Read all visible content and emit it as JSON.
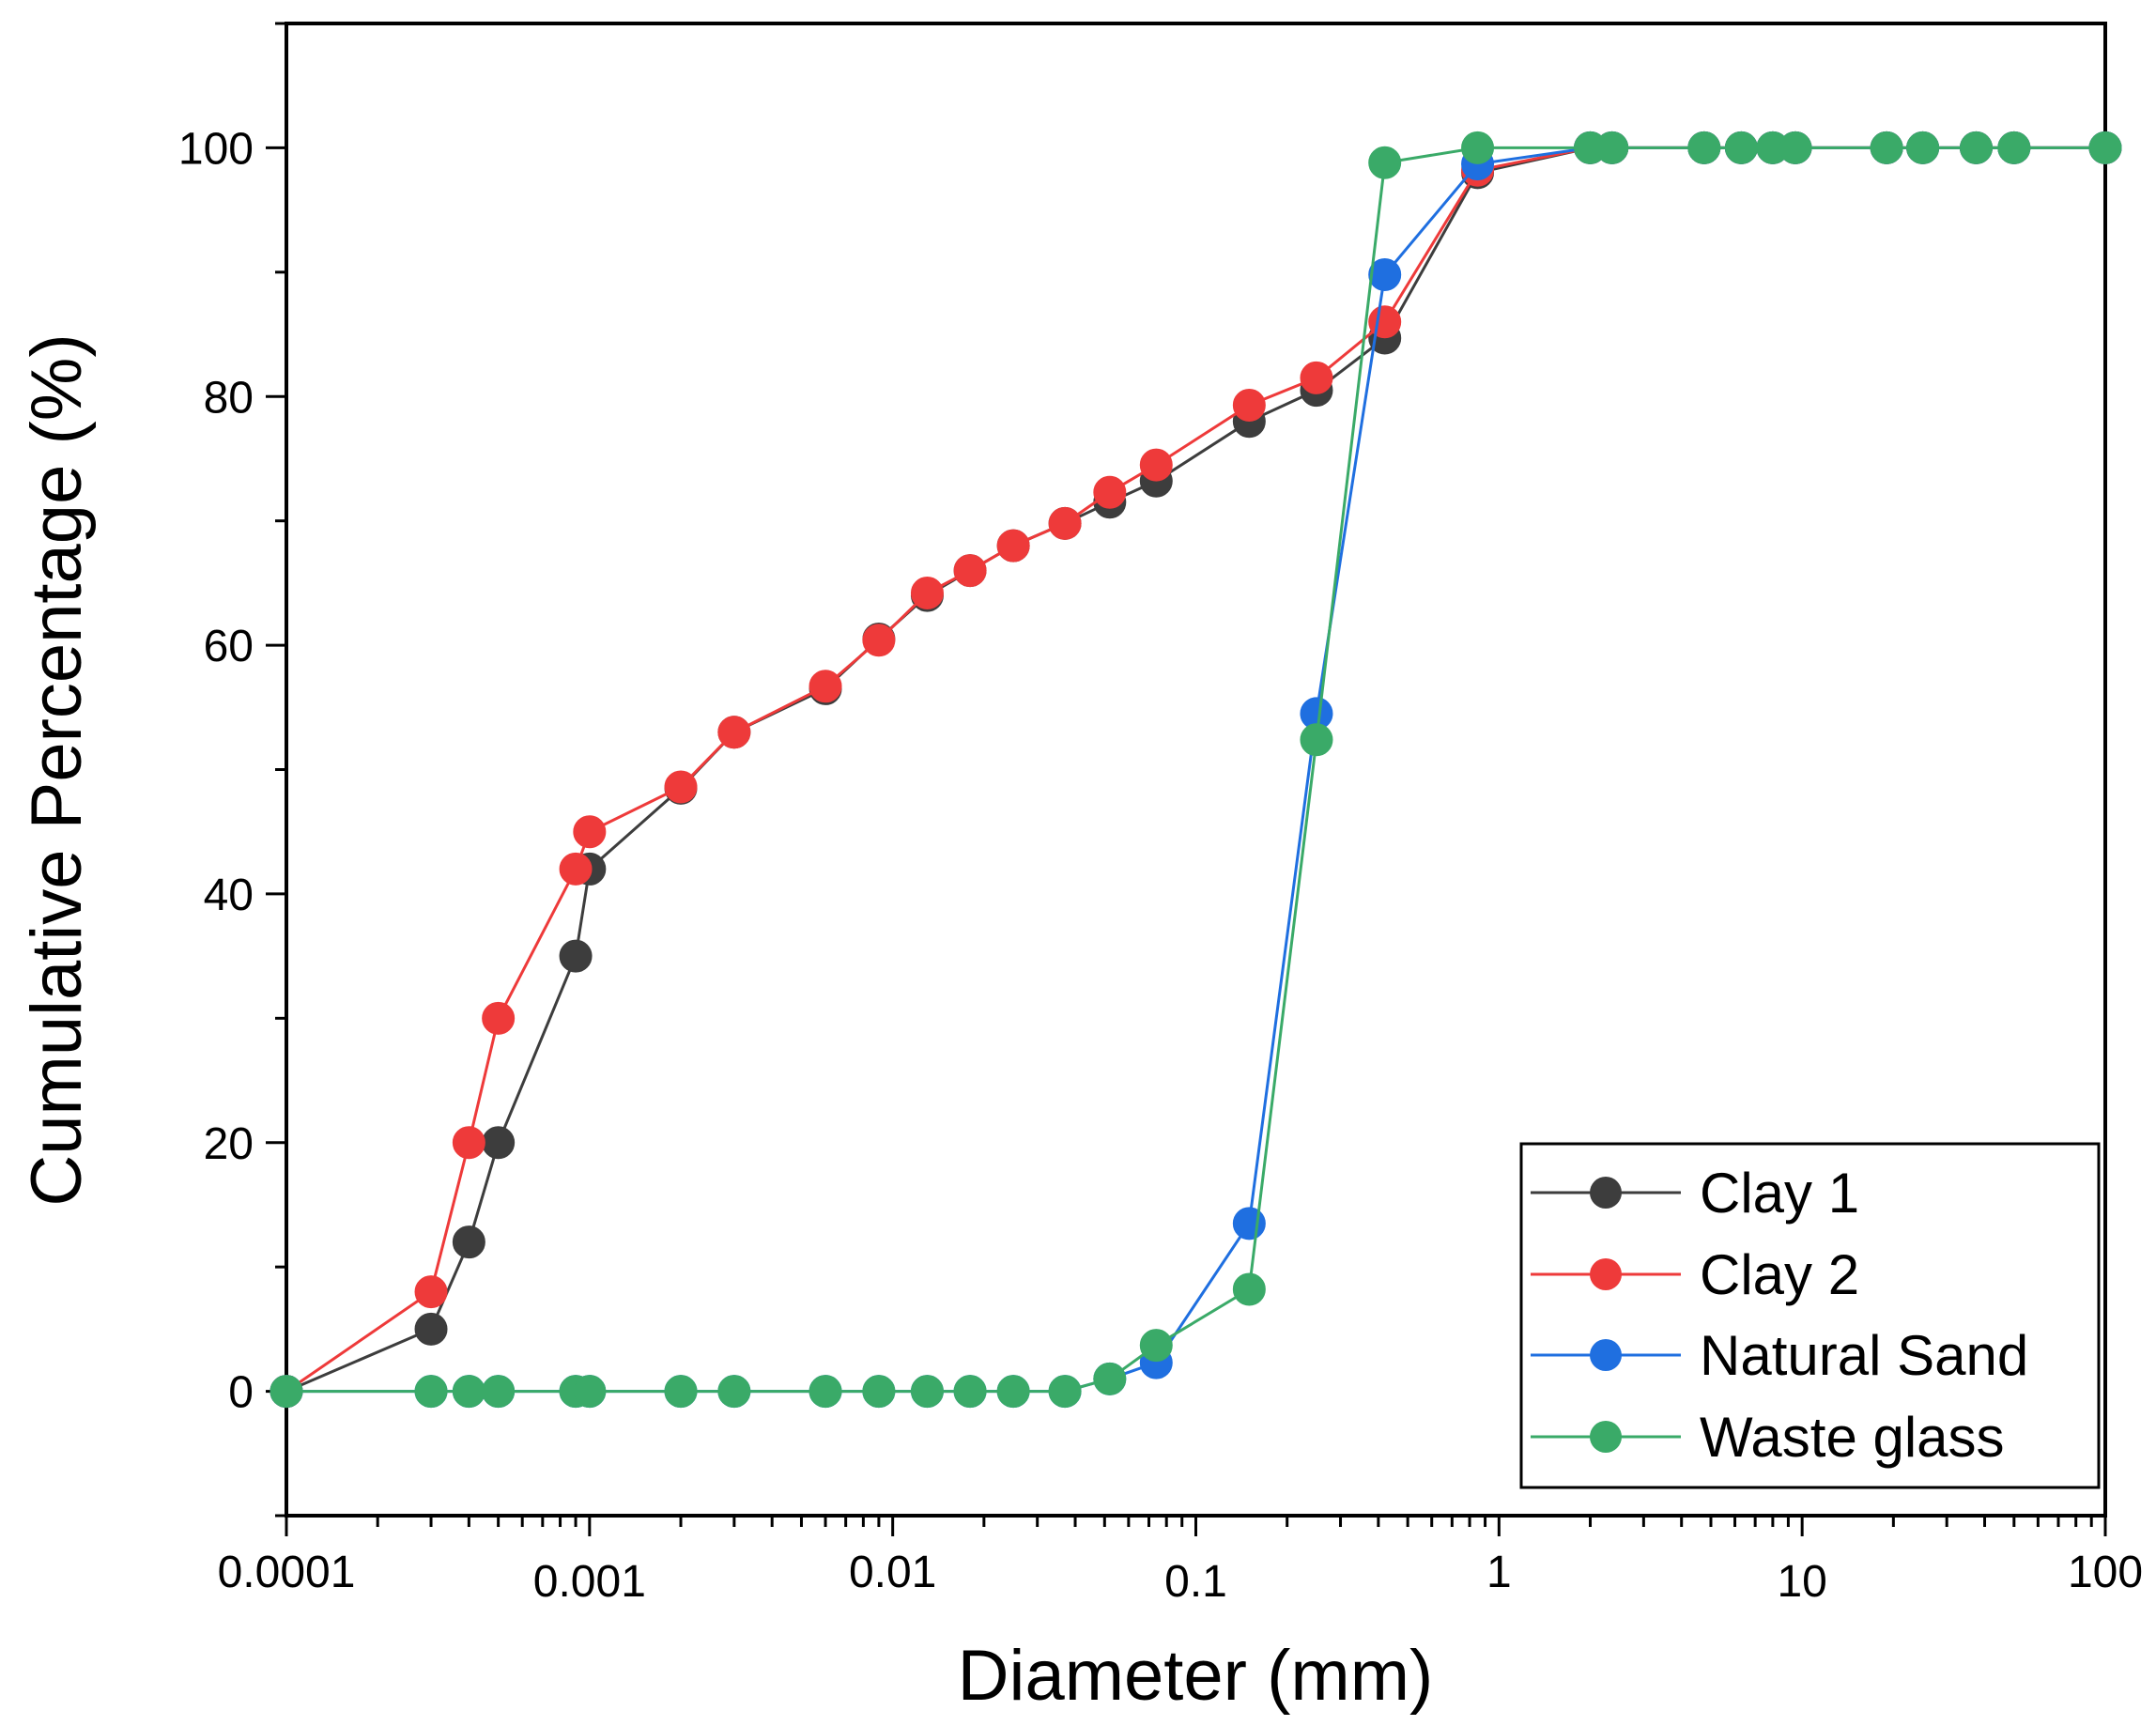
{
  "chart_data": {
    "type": "line",
    "xscale": "log",
    "xlabel": "Diameter (mm)",
    "ylabel": "Cumulative Percentage (%)",
    "xlim": [
      0.0001,
      100
    ],
    "ylim": [
      -10,
      110
    ],
    "xticks": [
      0.0001,
      0.001,
      0.01,
      0.1,
      1,
      10,
      100
    ],
    "xtick_labels": [
      "0.0001",
      "0.001",
      "0.01",
      "0.1",
      "1",
      "10",
      "100"
    ],
    "yticks": [
      0,
      20,
      40,
      60,
      80,
      100
    ],
    "ytick_labels": [
      "0",
      "20",
      "40",
      "60",
      "80",
      "100"
    ],
    "legend_position": "bottom-right",
    "series": [
      {
        "name": "Clay 1",
        "color": "#3d3d3d",
        "x": [
          0.0001,
          0.0003,
          0.0004,
          0.0005,
          0.0009,
          0.001,
          0.002,
          0.003,
          0.006,
          0.009,
          0.013,
          0.018,
          0.025,
          0.037,
          0.052,
          0.074,
          0.15,
          0.25,
          0.42,
          0.85,
          2,
          2.36,
          4.75,
          6.3,
          8,
          9.5,
          19,
          25,
          37.5,
          50,
          100
        ],
        "y": [
          0,
          5,
          12,
          20,
          35,
          42,
          48.5,
          53,
          56.5,
          60.5,
          64,
          66,
          68,
          69.8,
          71.5,
          73.2,
          78,
          80.5,
          84.7,
          98,
          100,
          100,
          100,
          100,
          100,
          100,
          100,
          100,
          100,
          100,
          100
        ]
      },
      {
        "name": "Clay 2",
        "color": "#ee3a3a",
        "x": [
          0.0001,
          0.0003,
          0.0004,
          0.0005,
          0.0009,
          0.001,
          0.002,
          0.003,
          0.006,
          0.009,
          0.013,
          0.018,
          0.025,
          0.037,
          0.052,
          0.074,
          0.15,
          0.25,
          0.42,
          0.85,
          2,
          2.36,
          4.75,
          6.3,
          8,
          9.5,
          19,
          25,
          37.5,
          50,
          100
        ],
        "y": [
          0,
          8,
          20,
          30,
          42,
          45,
          48.6,
          53,
          56.7,
          60.4,
          64.2,
          66,
          68,
          69.8,
          72.3,
          74.5,
          79.3,
          81.5,
          86,
          98.2,
          100,
          100,
          100,
          100,
          100,
          100,
          100,
          100,
          100,
          100,
          100
        ]
      },
      {
        "name": "Natural Sand",
        "color": "#1f6fe0",
        "x": [
          0.0001,
          0.0003,
          0.0004,
          0.0005,
          0.0009,
          0.001,
          0.002,
          0.003,
          0.006,
          0.009,
          0.013,
          0.018,
          0.025,
          0.037,
          0.052,
          0.074,
          0.15,
          0.25,
          0.42,
          0.85,
          2,
          2.36,
          4.75,
          6.3,
          8,
          9.5,
          19,
          25,
          37.5,
          50,
          100
        ],
        "y": [
          0,
          0,
          0,
          0,
          0,
          0,
          0,
          0,
          0,
          0,
          0,
          0,
          0,
          0,
          1,
          2.3,
          13.5,
          54.5,
          89.8,
          98.7,
          100,
          100,
          100,
          100,
          100,
          100,
          100,
          100,
          100,
          100,
          100
        ]
      },
      {
        "name": "Waste glass",
        "color": "#3aaa68",
        "x": [
          0.0001,
          0.0003,
          0.0004,
          0.0005,
          0.0009,
          0.001,
          0.002,
          0.003,
          0.006,
          0.009,
          0.013,
          0.018,
          0.025,
          0.037,
          0.052,
          0.074,
          0.15,
          0.25,
          0.42,
          0.85,
          2,
          2.36,
          4.75,
          6.3,
          8,
          9.5,
          19,
          25,
          37.5,
          50,
          100
        ],
        "y": [
          0,
          0,
          0,
          0,
          0,
          0,
          0,
          0,
          0,
          0,
          0,
          0,
          0,
          0,
          1,
          3.7,
          8.2,
          52.4,
          98.8,
          100,
          100,
          100,
          100,
          100,
          100,
          100,
          100,
          100,
          100,
          100,
          100
        ]
      }
    ]
  }
}
